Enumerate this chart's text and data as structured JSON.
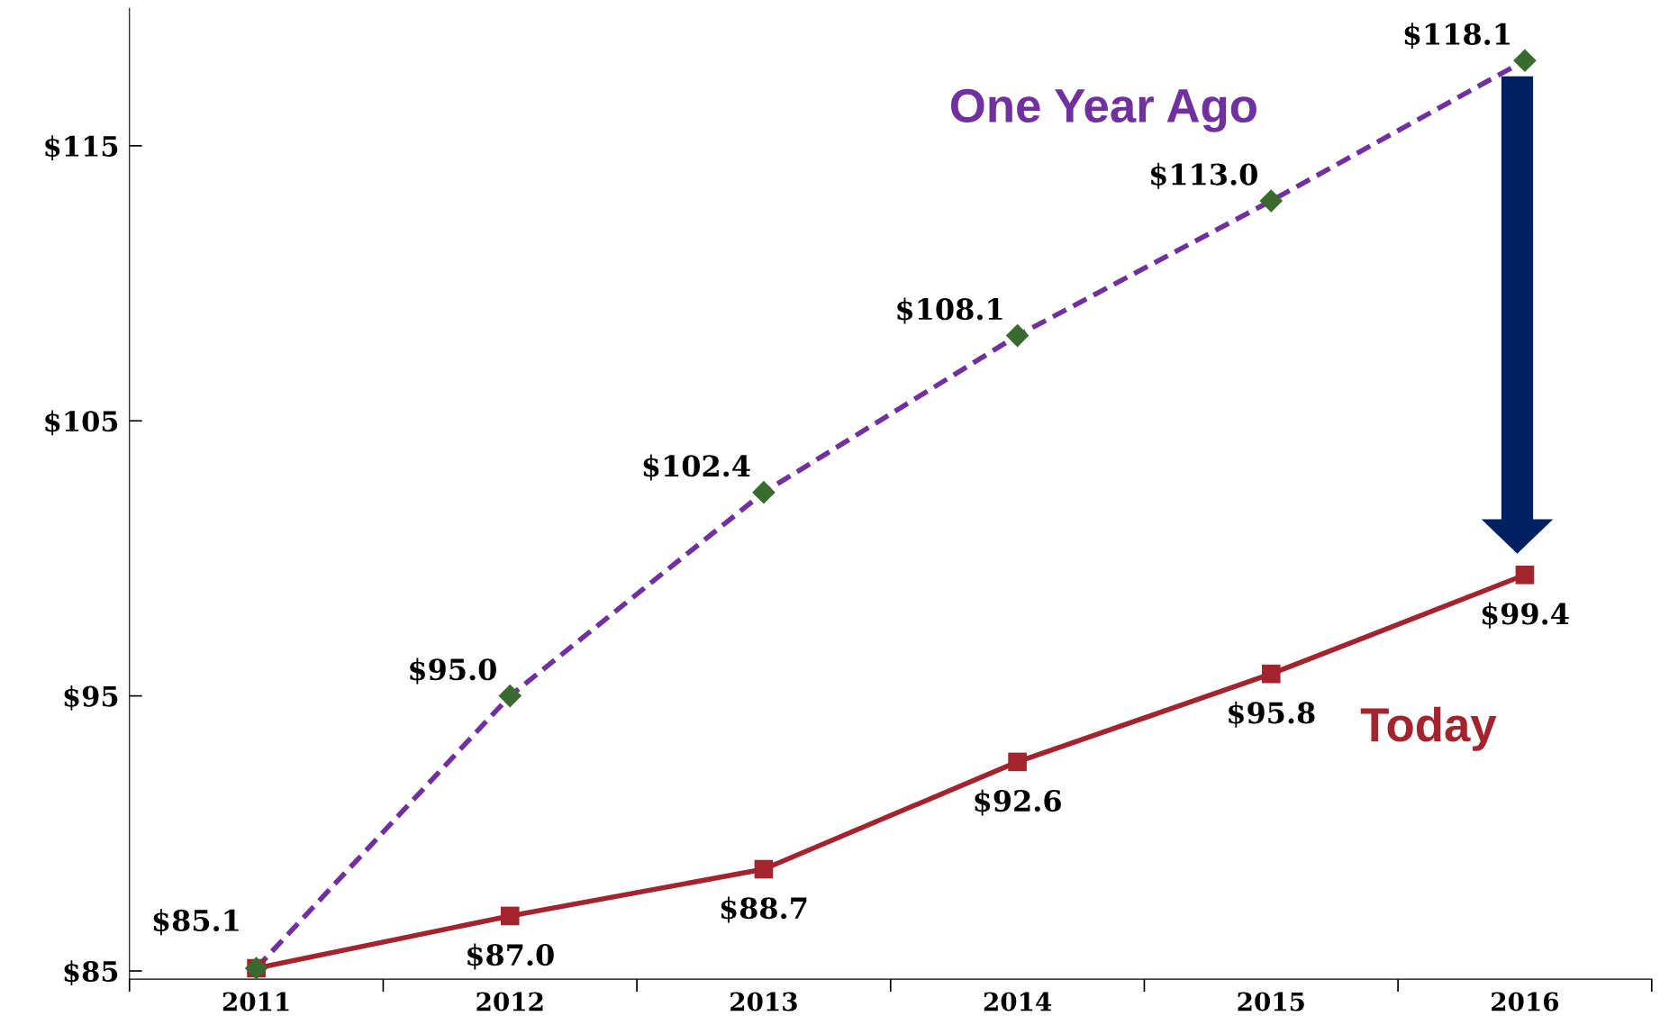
{
  "chart_data": {
    "type": "line",
    "categories": [
      "2011",
      "2012",
      "2013",
      "2014",
      "2015",
      "2016"
    ],
    "series": [
      {
        "name": "Today",
        "color": "#a3232f",
        "values": [
          85.1,
          87.0,
          88.7,
          92.6,
          95.8,
          99.4
        ],
        "marker": "square",
        "line_style": "solid",
        "value_labels": [
          "$85.1",
          "$87.0",
          "$88.7",
          "$92.6",
          "$95.8",
          "$99.4"
        ]
      },
      {
        "name": "One Year Ago",
        "color": "#7030a0",
        "colors": [
          "#3a6b2e",
          "#3a6b2e",
          "#3a6b2e",
          "#3a6b2e",
          "#3a6b2e",
          "#3a6b2e"
        ],
        "values": [
          85.1,
          95.0,
          102.4,
          108.1,
          113.0,
          118.1
        ],
        "marker": "diamond",
        "line_style": "dashed",
        "value_labels": [
          null,
          "$95.0",
          "$102.4",
          "$108.1",
          "$113.0",
          "$118.1"
        ]
      }
    ],
    "ylim": [
      84.7,
      120
    ],
    "yticks": [
      {
        "value": 85,
        "label": "$85"
      },
      {
        "value": 95,
        "label": "$95"
      },
      {
        "value": 105,
        "label": "$105"
      },
      {
        "value": 115,
        "label": "$115"
      }
    ],
    "grid": false,
    "legend": false
  }
}
